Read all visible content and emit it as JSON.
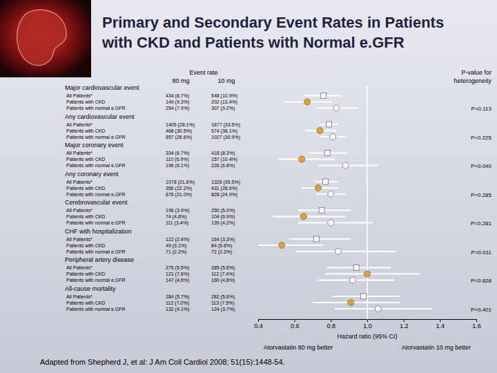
{
  "chart_data": {
    "type": "forest",
    "title": "Primary and Secondary Event Rates in Patients with CKD and Patients with Normal e.GFR",
    "column_headers": {
      "event_rate": "Event rate",
      "dose_80": "80 mg",
      "dose_10": "10 mg",
      "p_value": "P-value for heterogeneity"
    },
    "categories": [
      "Major cardiovascular event",
      "Any cardiovascular event",
      "Major coronary event",
      "Any coronary event",
      "Cerebrovascular event",
      "CHF with hospitalization",
      "Peripheral artery disease",
      "All-cause mortality"
    ],
    "series": [
      {
        "name": "All Patients*",
        "color": "#ffffff",
        "marker": "square",
        "values": [
          0.76,
          0.79,
          0.78,
          0.77,
          0.75,
          0.72,
          0.94,
          0.98
        ],
        "ci_low": [
          0.65,
          0.74,
          0.68,
          0.71,
          0.62,
          0.57,
          0.78,
          0.81
        ],
        "ci_high": [
          0.86,
          0.84,
          0.89,
          0.84,
          0.91,
          0.91,
          1.13,
          1.18
        ],
        "rate_80": [
          "434 (8.7%)",
          "1405 (28.1%)",
          "334 (6.7%)",
          "1078 (21.6%)",
          "196 (3.9%)",
          "122 (2.4%)",
          "275 (5.5%)",
          "284 (5.7%)"
        ],
        "rate_10": [
          "548 (10.9%)",
          "1677 (33.5%)",
          "418 (8.3%)",
          "1326 (26.5%)",
          "250 (5.0%)",
          "164 (3.3%)",
          "285 (5.6%)",
          "282 (5.6%)"
        ]
      },
      {
        "name": "Patients with CKD",
        "color": "#e8a317",
        "marker": "circle",
        "values": [
          0.67,
          0.74,
          0.64,
          0.73,
          0.65,
          0.53,
          1.0,
          0.91
        ],
        "ci_low": [
          0.54,
          0.66,
          0.51,
          0.64,
          0.48,
          0.37,
          0.77,
          0.7
        ],
        "ci_high": [
          0.81,
          0.83,
          0.82,
          0.84,
          0.88,
          0.76,
          1.29,
          1.18
        ],
        "rate_80": [
          "149 (9.3%)",
          "468 (30.5%)",
          "110 (6.9%)",
          "356 (22.2%)",
          "74 (4.6%)",
          "49 (3.1%)",
          "121 (7.6%)",
          "112 (7.0%)"
        ],
        "rate_10": [
          "202 (13.4%)",
          "574 (38.1%)",
          "157 (10.4%)",
          "431 (28.6%)",
          "104 (6.9%)",
          "84 (5.6%)",
          "112 (7.4%)",
          "113 (7.5%)"
        ]
      },
      {
        "name": "Patients with normal e.GFR",
        "color": "#ffffff",
        "marker": "circle",
        "values": [
          0.83,
          0.81,
          0.88,
          0.8,
          0.8,
          0.84,
          0.92,
          1.06
        ],
        "ci_low": [
          0.72,
          0.74,
          0.73,
          0.72,
          0.62,
          0.61,
          0.73,
          0.82
        ],
        "ci_high": [
          0.95,
          0.88,
          1.06,
          0.88,
          1.03,
          1.16,
          1.15,
          1.36
        ],
        "rate_80": [
          "254 (7.9%)",
          "857 (26.6%)",
          "196 (6.1%)",
          "676 (21.0%)",
          "111 (3.4%)",
          "71 (2.2%)",
          "147 (4.6%)",
          "132 (4.1%)"
        ],
        "rate_10": [
          "307 (9.2%)",
          "1027 (30.9%)",
          "226 (6.8%)",
          "828 (24.9%)",
          "139 (4.2%)",
          "72 (2.2%)",
          "160 (4.8%)",
          "124 (3.7%)"
        ]
      }
    ],
    "p_values": [
      0.113,
      0.225,
      0.04,
      0.285,
      0.281,
      0.011,
      0.628,
      0.401
    ],
    "p_value_labels": [
      "P=0.113",
      "P=0.225",
      "P=0.040",
      "P=0.285",
      "P=0.281",
      "P=0.011",
      "P=0.628",
      "P=0.401"
    ],
    "reference_line": 1,
    "xlim": [
      0.4,
      1.6
    ],
    "xticks": [
      0.4,
      0.6,
      0.8,
      {
        "value": 1,
        "label": "1.0"
      },
      1.2,
      1.4,
      1.6
    ],
    "x_label": "Hazard ratio (95% CI)",
    "annotations": [
      "Atorvastatin 80 mg better",
      "Atorvastatin 10 mg better"
    ],
    "source": "Adapted from Shepherd J, et al: J Am Coll Cardiol 2008; 51(15):1448-54."
  }
}
